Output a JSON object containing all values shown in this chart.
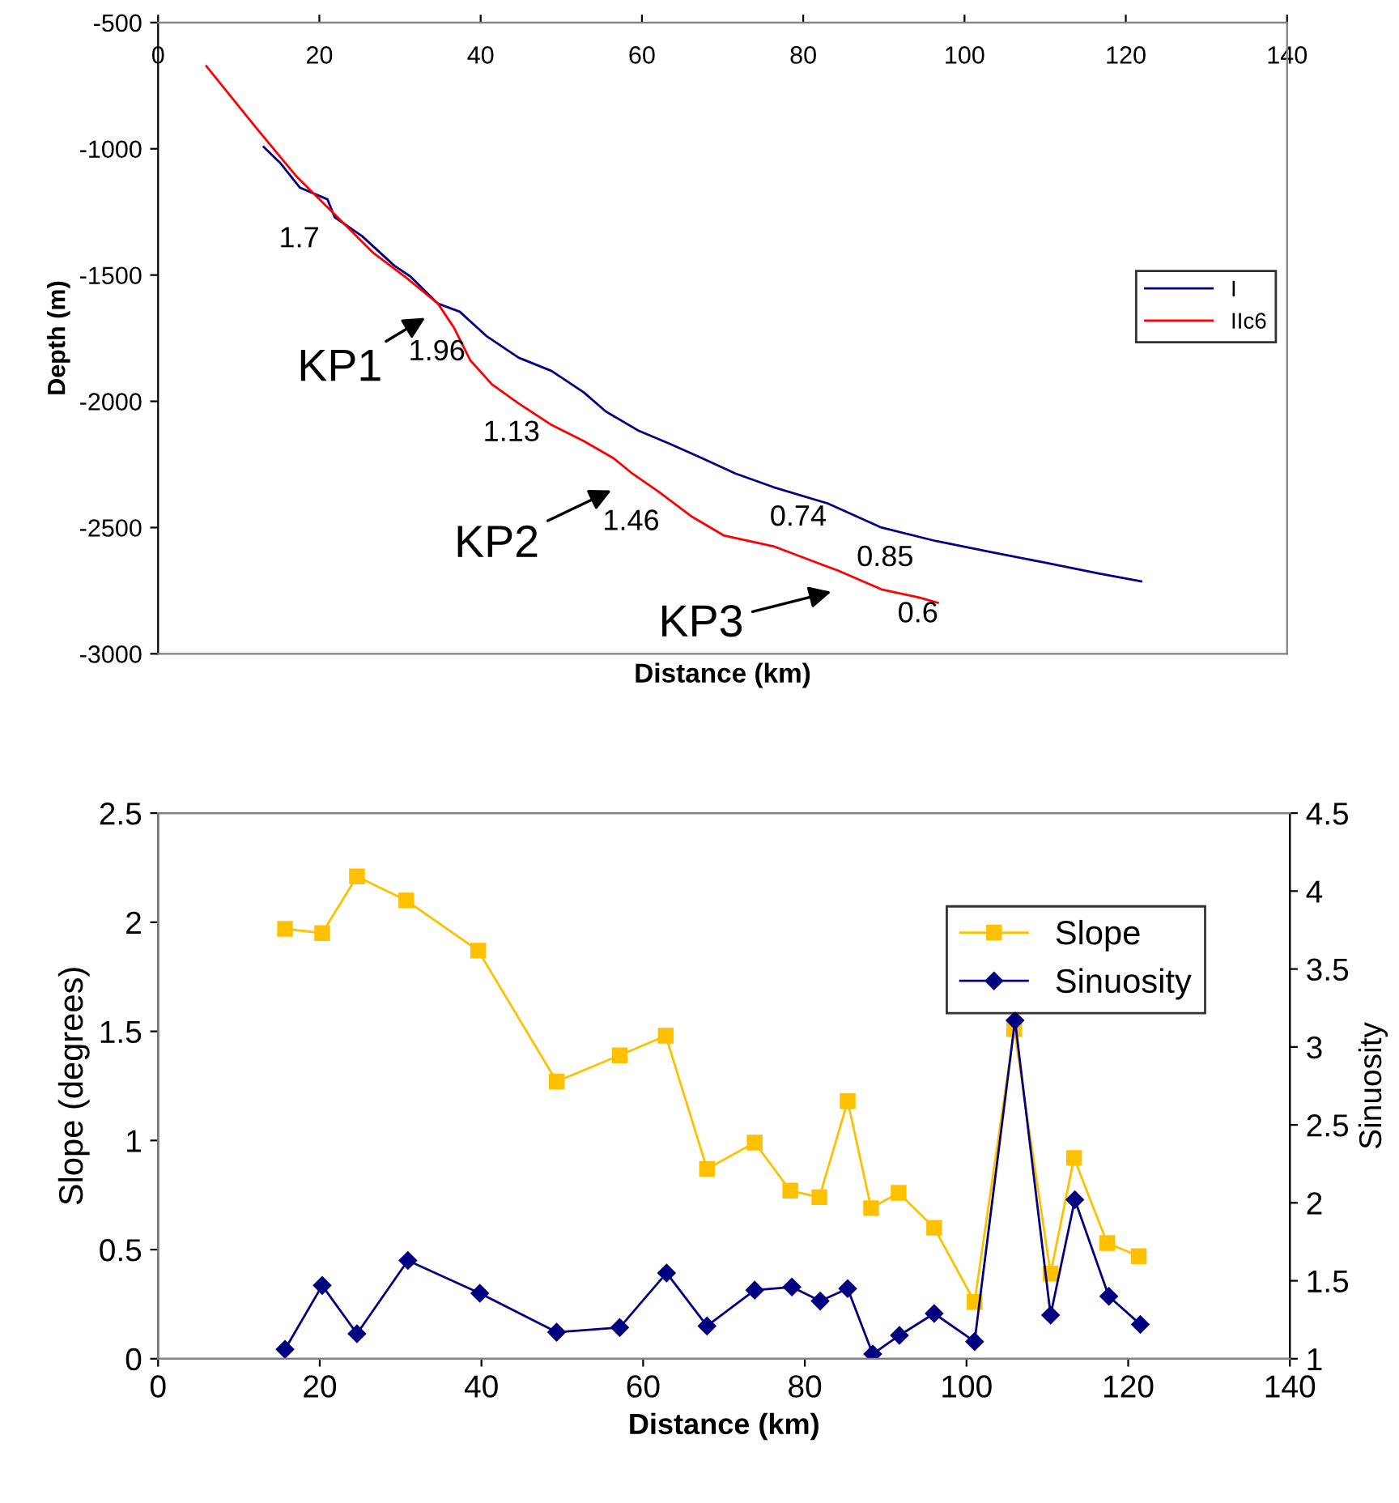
{
  "chart_data": [
    {
      "type": "line",
      "xlabel": "Distance (km)",
      "ylabel": "Depth (m)",
      "xlim": [
        0,
        140
      ],
      "xticks": [
        0,
        20,
        40,
        60,
        80,
        100,
        120,
        140
      ],
      "ylim": [
        -3000,
        -500
      ],
      "yticks": [
        -3000,
        -2500,
        -2000,
        -1500,
        -1000,
        -500
      ],
      "legend": "right",
      "series": [
        {
          "name": "I",
          "color": "#000080",
          "x": [
            13.1,
            15.2,
            17.6,
            21.0,
            21.9,
            25.3,
            29.3,
            31.3,
            34.7,
            37.4,
            40.7,
            44.7,
            48.8,
            52.8,
            55.5,
            59.5,
            63.5,
            67.5,
            71.6,
            76.3,
            83.0,
            89.7,
            96.4,
            103.1,
            109.8,
            116.5,
            121.9
          ],
          "values": [
            -993,
            -1058,
            -1154,
            -1200,
            -1271,
            -1346,
            -1463,
            -1506,
            -1613,
            -1645,
            -1741,
            -1827,
            -1880,
            -1965,
            -2040,
            -2115,
            -2169,
            -2226,
            -2286,
            -2340,
            -2404,
            -2500,
            -2553,
            -2596,
            -2638,
            -2681,
            -2713
          ]
        },
        {
          "name": "IIc6",
          "color": "#ff0000",
          "x": [
            6.0,
            11.9,
            17.2,
            21.9,
            26.6,
            30.6,
            34.7,
            36.7,
            38.7,
            41.4,
            44.7,
            48.8,
            52.8,
            56.5,
            58.8,
            62.2,
            66.2,
            70.2,
            76.3,
            81.6,
            84.3,
            89.7,
            94.4,
            96.7
          ],
          "values": [
            -673,
            -907,
            -1111,
            -1260,
            -1410,
            -1506,
            -1613,
            -1709,
            -1837,
            -1933,
            -2008,
            -2094,
            -2158,
            -2226,
            -2286,
            -2361,
            -2457,
            -2532,
            -2574,
            -2638,
            -2670,
            -2745,
            -2777,
            -2798
          ]
        }
      ],
      "annotations": [
        "1.7",
        "1.96",
        "1.13",
        "1.46",
        "0.74",
        "0.85",
        "0.6",
        "KP1",
        "KP2",
        "KP3"
      ]
    },
    {
      "type": "line",
      "xlabel": "Distance (km)",
      "ylabel": "Slope (degrees)",
      "y2label": "Sinuosity",
      "xlim": [
        0,
        140
      ],
      "xticks": [
        0,
        20,
        40,
        60,
        80,
        100,
        120,
        140
      ],
      "ylim": [
        0,
        2.5
      ],
      "yticks": [
        0,
        0.5,
        1,
        1.5,
        2,
        2.5
      ],
      "y2lim": [
        1,
        4.5
      ],
      "y2ticks": [
        1,
        1.5,
        2,
        2.5,
        3,
        3.5,
        4,
        4.5
      ],
      "legend": "top right",
      "series": [
        {
          "name": "Slope",
          "color": "#ffc000",
          "marker": "square",
          "x": [
            15.7,
            20.3,
            24.6,
            30.7,
            39.6,
            49.3,
            57.1,
            62.8,
            67.9,
            73.8,
            78.2,
            81.8,
            85.3,
            88.2,
            91.6,
            96.0,
            101.0,
            105.9,
            110.4,
            113.3,
            117.4,
            121.3
          ],
          "values": [
            1.97,
            1.95,
            2.21,
            2.1,
            1.87,
            1.27,
            1.39,
            1.48,
            0.87,
            0.99,
            0.77,
            0.74,
            1.18,
            0.69,
            0.76,
            0.6,
            0.26,
            1.51,
            0.39,
            0.92,
            0.53,
            0.47
          ]
        },
        {
          "name": "Sinuosity",
          "color": "#000080",
          "marker": "diamond",
          "axis": "y2",
          "x": [
            15.7,
            20.3,
            24.6,
            30.9,
            39.8,
            49.3,
            57.1,
            62.9,
            67.9,
            73.8,
            78.4,
            81.9,
            85.3,
            88.4,
            91.7,
            96.0,
            101.0,
            106.0,
            110.4,
            113.4,
            117.6,
            121.5
          ],
          "values": [
            1.06,
            1.47,
            1.16,
            1.63,
            1.42,
            1.17,
            1.2,
            1.55,
            1.21,
            1.44,
            1.46,
            1.37,
            1.45,
            1.03,
            1.15,
            1.29,
            1.11,
            3.17,
            1.28,
            2.02,
            1.4,
            1.22
          ]
        }
      ]
    }
  ]
}
